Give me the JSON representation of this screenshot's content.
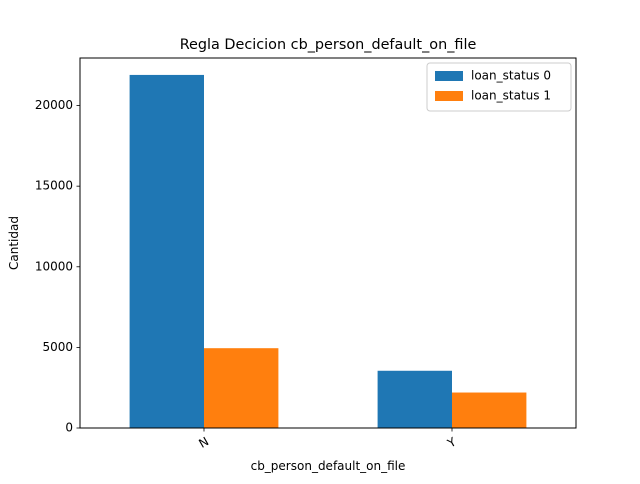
{
  "chart_data": {
    "type": "bar",
    "title": "Regla Decicion cb_person_default_on_file",
    "xlabel": "cb_person_default_on_file",
    "ylabel": "Cantidad",
    "categories": [
      "N",
      "Y"
    ],
    "series": [
      {
        "name": "loan_status 0",
        "values": [
          21900,
          3550
        ],
        "color": "#1f77b4"
      },
      {
        "name": "loan_status 1",
        "values": [
          4950,
          2200
        ],
        "color": "#ff7f0e"
      }
    ],
    "ylim": [
      0,
      22950
    ],
    "yticks": [
      0,
      5000,
      10000,
      15000,
      20000
    ],
    "ytick_labels": [
      "0",
      "5000",
      "10000",
      "15000",
      "20000"
    ],
    "xtick_rotation_deg": -30,
    "grid": false,
    "legend_position": "top-right"
  }
}
